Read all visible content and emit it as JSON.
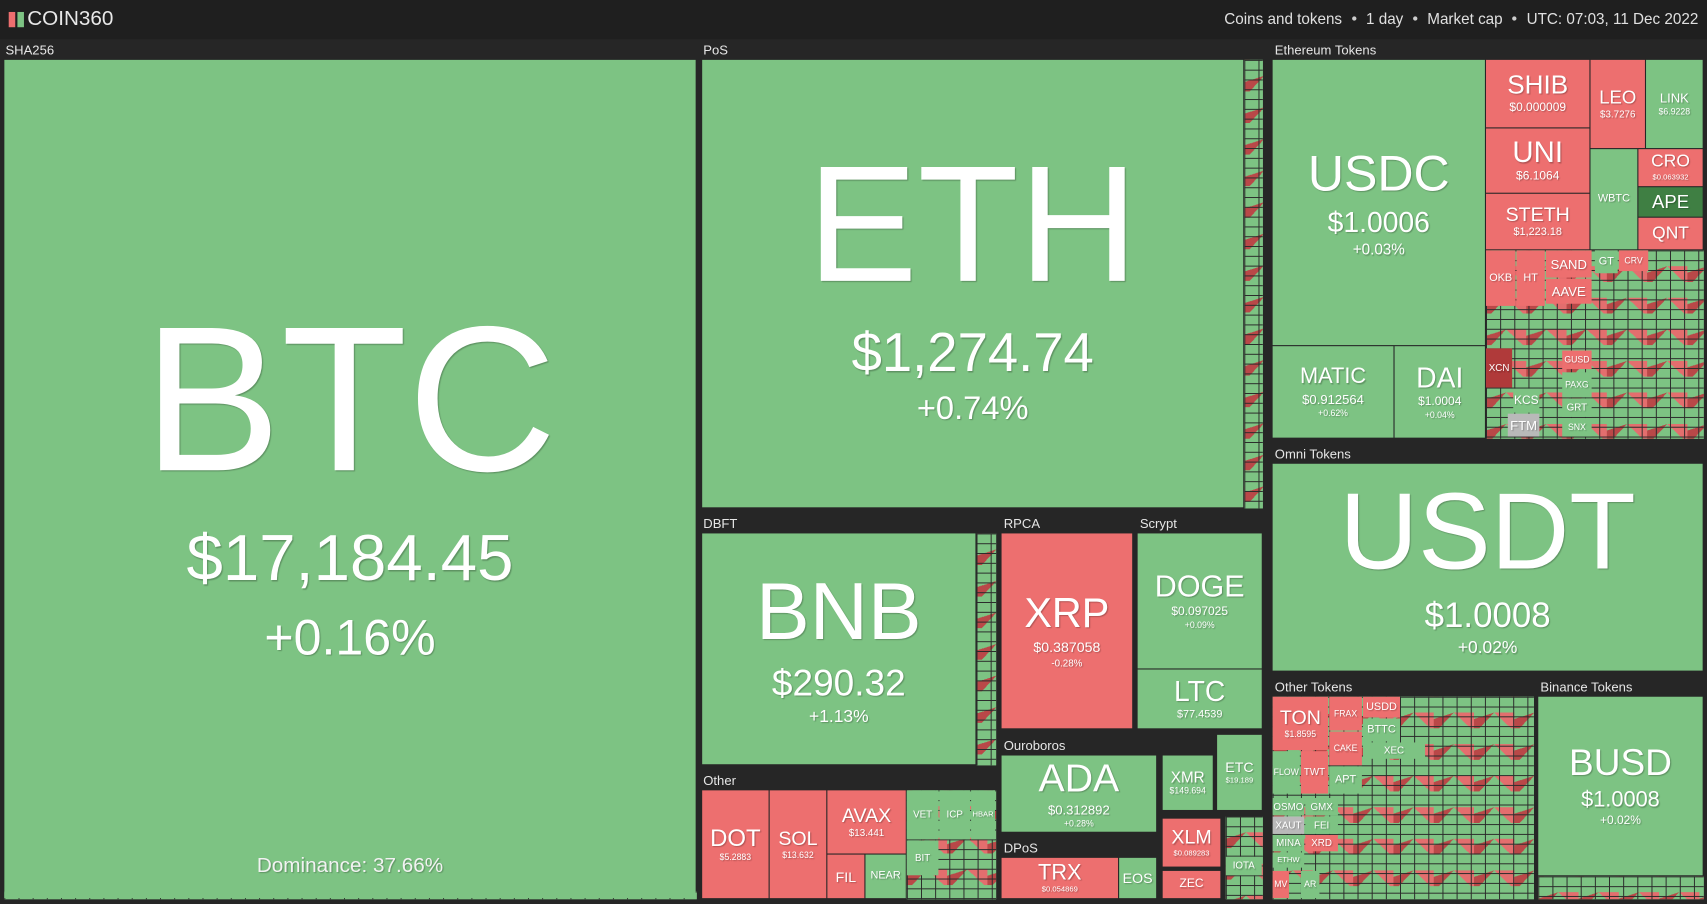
{
  "header": {
    "logo": "COIN360",
    "filters": [
      "Coins and tokens",
      "1 day",
      "Market cap",
      "UTC: 07:03, 11 Dec 2022"
    ]
  },
  "groups": [
    {
      "label": "SHA256",
      "tiles": [
        {
          "symbol": "BTC",
          "price": "$17,184.45",
          "change": "+0.16%",
          "dominance": "Dominance: 37.66%"
        }
      ]
    },
    {
      "label": "PoS",
      "tiles": [
        {
          "symbol": "ETH",
          "price": "$1,274.74",
          "change": "+0.74%"
        }
      ]
    },
    {
      "label": "Ethereum Tokens",
      "tiles": [
        {
          "symbol": "USDC",
          "price": "$1.0006",
          "change": "+0.03%"
        },
        {
          "symbol": "MATIC",
          "price": "$0.912564",
          "change": "+0.62%"
        },
        {
          "symbol": "DAI",
          "price": "$1.0004",
          "change": "+0.04%"
        },
        {
          "symbol": "SHIB",
          "price": "$0.000009"
        },
        {
          "symbol": "UNI",
          "price": "$6.1064"
        },
        {
          "symbol": "STETH",
          "price": "$1,223.18"
        },
        {
          "symbol": "LEO",
          "price": "$3.7276"
        },
        {
          "symbol": "LINK",
          "price": "$6.9228"
        },
        {
          "symbol": "WBTC"
        },
        {
          "symbol": "CRO",
          "price": "$0.063932"
        },
        {
          "symbol": "APE"
        },
        {
          "symbol": "QNT"
        },
        {
          "symbol": "OKB"
        },
        {
          "symbol": "HT"
        },
        {
          "symbol": "SAND"
        },
        {
          "symbol": "AAVE"
        },
        {
          "symbol": "GT"
        },
        {
          "symbol": "CRV"
        },
        {
          "symbol": "XCN"
        },
        {
          "symbol": "KCS"
        },
        {
          "symbol": "FTM"
        },
        {
          "symbol": "GUSD"
        },
        {
          "symbol": "PAXG"
        },
        {
          "symbol": "GRT"
        },
        {
          "symbol": "SNX"
        }
      ]
    },
    {
      "label": "Omni Tokens",
      "tiles": [
        {
          "symbol": "USDT",
          "price": "$1.0008",
          "change": "+0.02%"
        }
      ]
    },
    {
      "label": "DBFT",
      "tiles": [
        {
          "symbol": "BNB",
          "price": "$290.32",
          "change": "+1.13%"
        }
      ]
    },
    {
      "label": "RPCA",
      "tiles": [
        {
          "symbol": "XRP",
          "price": "$0.387058",
          "change": "-0.28%"
        }
      ]
    },
    {
      "label": "Scrypt",
      "tiles": [
        {
          "symbol": "DOGE",
          "price": "$0.097025",
          "change": "+0.09%"
        },
        {
          "symbol": "LTC",
          "price": "$77.4539"
        }
      ]
    },
    {
      "label": "Other",
      "tiles": [
        {
          "symbol": "DOT",
          "price": "$5.2883"
        },
        {
          "symbol": "SOL",
          "price": "$13.632"
        },
        {
          "symbol": "AVAX",
          "price": "$13.441"
        },
        {
          "symbol": "FIL"
        },
        {
          "symbol": "NEAR"
        },
        {
          "symbol": "VET"
        },
        {
          "symbol": "ICP"
        },
        {
          "symbol": "HBAR"
        },
        {
          "symbol": "BIT"
        }
      ]
    },
    {
      "label": "Ouroboros",
      "tiles": [
        {
          "symbol": "ADA",
          "price": "$0.312892",
          "change": "+0.28%"
        }
      ]
    },
    {
      "tiles": [
        {
          "symbol": "XMR",
          "price": "$149.694"
        },
        {
          "symbol": "ETC",
          "price": "$19.189"
        },
        {
          "symbol": "XLM",
          "price": "$0.089283"
        },
        {
          "symbol": "ZEC"
        },
        {
          "symbol": "IOTA"
        }
      ]
    },
    {
      "label": "DPoS",
      "tiles": [
        {
          "symbol": "TRX",
          "price": "$0.054869"
        },
        {
          "symbol": "EOS"
        }
      ]
    },
    {
      "label": "Other Tokens",
      "tiles": [
        {
          "symbol": "TON",
          "price": "$1.8595"
        },
        {
          "symbol": "FRAX"
        },
        {
          "symbol": "USDD"
        },
        {
          "symbol": "BTTC"
        },
        {
          "symbol": "XEC"
        },
        {
          "symbol": "CAKE"
        },
        {
          "symbol": "TWT"
        },
        {
          "symbol": "APT"
        },
        {
          "symbol": "FLOW"
        },
        {
          "symbol": "OSMO"
        },
        {
          "symbol": "GMX"
        },
        {
          "symbol": "XAUT"
        },
        {
          "symbol": "FEI"
        },
        {
          "symbol": "MINA"
        },
        {
          "symbol": "XRD"
        },
        {
          "symbol": "ETHW"
        },
        {
          "symbol": "MV"
        },
        {
          "symbol": "AR"
        }
      ]
    },
    {
      "label": "Binance Tokens",
      "tiles": [
        {
          "symbol": "BUSD",
          "price": "$1.0008",
          "change": "+0.02%"
        }
      ]
    }
  ]
}
